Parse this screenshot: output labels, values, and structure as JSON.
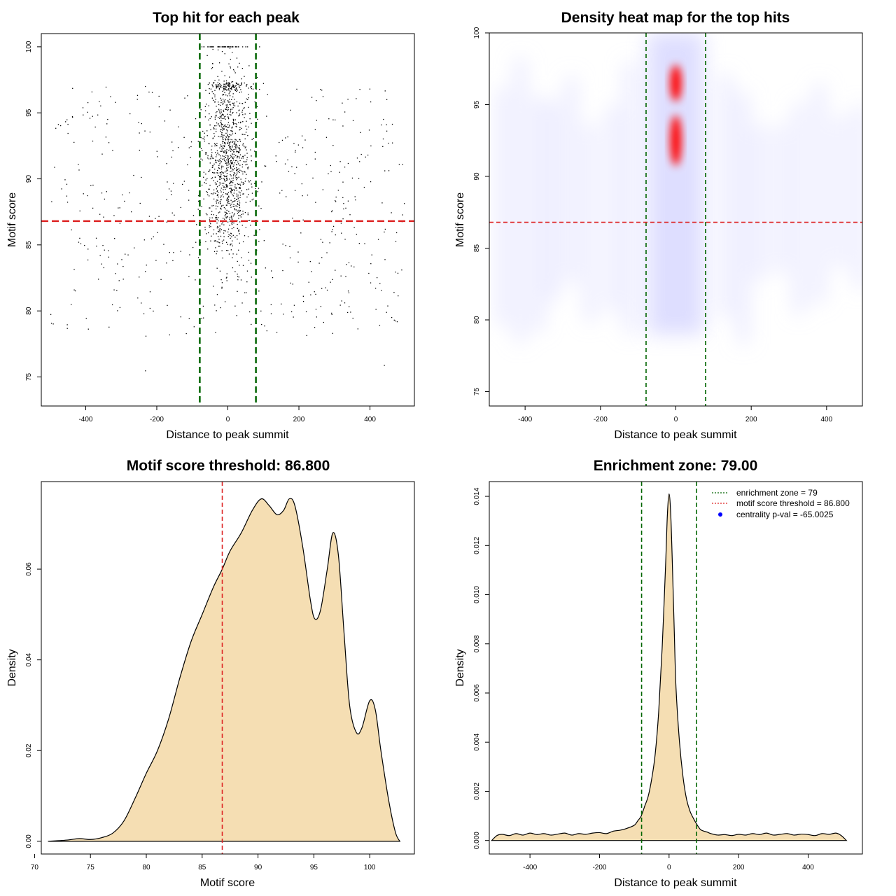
{
  "colors": {
    "threshold": "#dd2222",
    "zone": "#006400",
    "density_fill": "#f5deb3",
    "point": "#000000",
    "heat_low": "#ffffff",
    "heat_mid": "#0000ff",
    "heat_high": "#ff0000",
    "legend_point": "#0000ff"
  },
  "chart_data": [
    {
      "id": "scatter",
      "type": "scatter",
      "title": "Top hit for each peak",
      "xlabel": "Distance to peak summit",
      "ylabel": "Motif score",
      "xlim": [
        -525,
        525
      ],
      "ylim": [
        72.8,
        101
      ],
      "xticks": [
        -400,
        -200,
        0,
        200,
        400
      ],
      "yticks": [
        75,
        80,
        85,
        90,
        95,
        100
      ],
      "threshold": 86.8,
      "zone": [
        -79,
        79
      ],
      "point_generation": {
        "central_points": 1200,
        "central_sd": 32,
        "background_points": 500,
        "x_range": [
          -500,
          500
        ],
        "y_range": [
          74,
          100
        ]
      }
    },
    {
      "id": "heatmap",
      "type": "heatmap",
      "title": "Density heat map for the top hits",
      "xlabel": "Distance to peak summit",
      "ylabel": "Motif score",
      "xlim": [
        -495,
        495
      ],
      "ylim": [
        74,
        100
      ],
      "xticks": [
        -400,
        -200,
        0,
        200,
        400
      ],
      "yticks": [
        75,
        80,
        85,
        90,
        95,
        100
      ],
      "threshold": 86.8,
      "zone": [
        -79,
        79
      ],
      "peak_center": 0
    },
    {
      "id": "score_density",
      "type": "area",
      "title": "Motif score threshold: 86.800",
      "xlabel": "Motif score",
      "ylabel": "Density",
      "xlim": [
        70.6,
        104
      ],
      "ylim": [
        -0.0028,
        0.0793
      ],
      "xticks": [
        70,
        75,
        80,
        85,
        90,
        95,
        100
      ],
      "yticks": [
        0.0,
        0.02,
        0.04,
        0.06
      ],
      "ytick_labels": [
        "0.00",
        "0.02",
        "0.04",
        "0.06"
      ],
      "threshold": 86.8,
      "x": [
        71.2,
        73,
        74,
        75,
        76,
        77,
        78,
        79,
        80,
        81,
        82,
        83,
        84,
        85,
        86,
        86.8,
        87.5,
        88.5,
        89.5,
        90.3,
        91,
        91.7,
        92.3,
        92.8,
        93.3,
        94,
        94.7,
        95.1,
        95.6,
        96.2,
        96.7,
        97.2,
        97.7,
        98.2,
        98.8,
        99.3,
        100,
        100.5,
        101,
        101.7,
        102.3,
        102.7
      ],
      "values": [
        0.0,
        0.0003,
        0.0006,
        0.0004,
        0.0008,
        0.0018,
        0.0045,
        0.0095,
        0.015,
        0.02,
        0.027,
        0.036,
        0.044,
        0.05,
        0.056,
        0.06,
        0.064,
        0.068,
        0.073,
        0.0755,
        0.074,
        0.072,
        0.073,
        0.0755,
        0.074,
        0.065,
        0.053,
        0.049,
        0.051,
        0.06,
        0.068,
        0.063,
        0.046,
        0.03,
        0.024,
        0.025,
        0.031,
        0.029,
        0.02,
        0.009,
        0.002,
        0.0
      ]
    },
    {
      "id": "enrichment",
      "type": "area",
      "title": "Enrichment zone: 79.00",
      "xlabel": "Distance to peak summit",
      "ylabel": "Density",
      "xlim": [
        -517,
        556
      ],
      "ylim": [
        -0.00055,
        0.0146
      ],
      "xticks": [
        -400,
        -200,
        0,
        200,
        400
      ],
      "yticks": [
        0.0,
        0.002,
        0.004,
        0.006,
        0.008,
        0.01,
        0.012,
        0.014
      ],
      "ytick_labels": [
        "0.000",
        "0.002",
        "0.004",
        "0.006",
        "0.008",
        "0.010",
        "0.012",
        "0.014"
      ],
      "zone": [
        -79,
        79
      ],
      "x": [
        -510,
        -495,
        -480,
        -460,
        -440,
        -420,
        -400,
        -380,
        -360,
        -340,
        -320,
        -300,
        -280,
        -260,
        -240,
        -220,
        -200,
        -180,
        -160,
        -140,
        -120,
        -100,
        -90,
        -80,
        -70,
        -60,
        -50,
        -40,
        -30,
        -20,
        -10,
        -5,
        0,
        5,
        10,
        15,
        20,
        30,
        40,
        50,
        60,
        70,
        80,
        90,
        100,
        110,
        120,
        140,
        160,
        180,
        200,
        220,
        240,
        260,
        280,
        300,
        320,
        340,
        360,
        380,
        400,
        420,
        440,
        460,
        480,
        495,
        510
      ],
      "values": [
        0.0,
        0.0002,
        0.00025,
        0.0002,
        0.00028,
        0.00022,
        0.0003,
        0.00024,
        0.00028,
        0.00022,
        0.00026,
        0.0003,
        0.00022,
        0.00028,
        0.00025,
        0.0003,
        0.00032,
        0.00028,
        0.00038,
        0.00042,
        0.0005,
        0.00062,
        0.0008,
        0.001,
        0.0014,
        0.0018,
        0.0025,
        0.0035,
        0.0052,
        0.0078,
        0.0112,
        0.0132,
        0.0141,
        0.0132,
        0.011,
        0.0085,
        0.0062,
        0.004,
        0.0026,
        0.0017,
        0.0012,
        0.0009,
        0.00065,
        0.00045,
        0.00038,
        0.00034,
        0.00028,
        0.00022,
        0.00024,
        0.0002,
        0.00025,
        0.00022,
        0.00028,
        0.00024,
        0.0003,
        0.00022,
        0.00025,
        0.00028,
        0.00022,
        0.00026,
        0.00024,
        0.0002,
        0.00028,
        0.00025,
        0.0003,
        0.0002,
        0.0
      ],
      "legend": [
        {
          "label": "enrichment zone = 79",
          "style": "green-dotted"
        },
        {
          "label": "motif score threshold = 86.800",
          "style": "red-dotted"
        },
        {
          "label": "centrality p-val = -65.0025",
          "style": "blue-point"
        }
      ]
    }
  ]
}
